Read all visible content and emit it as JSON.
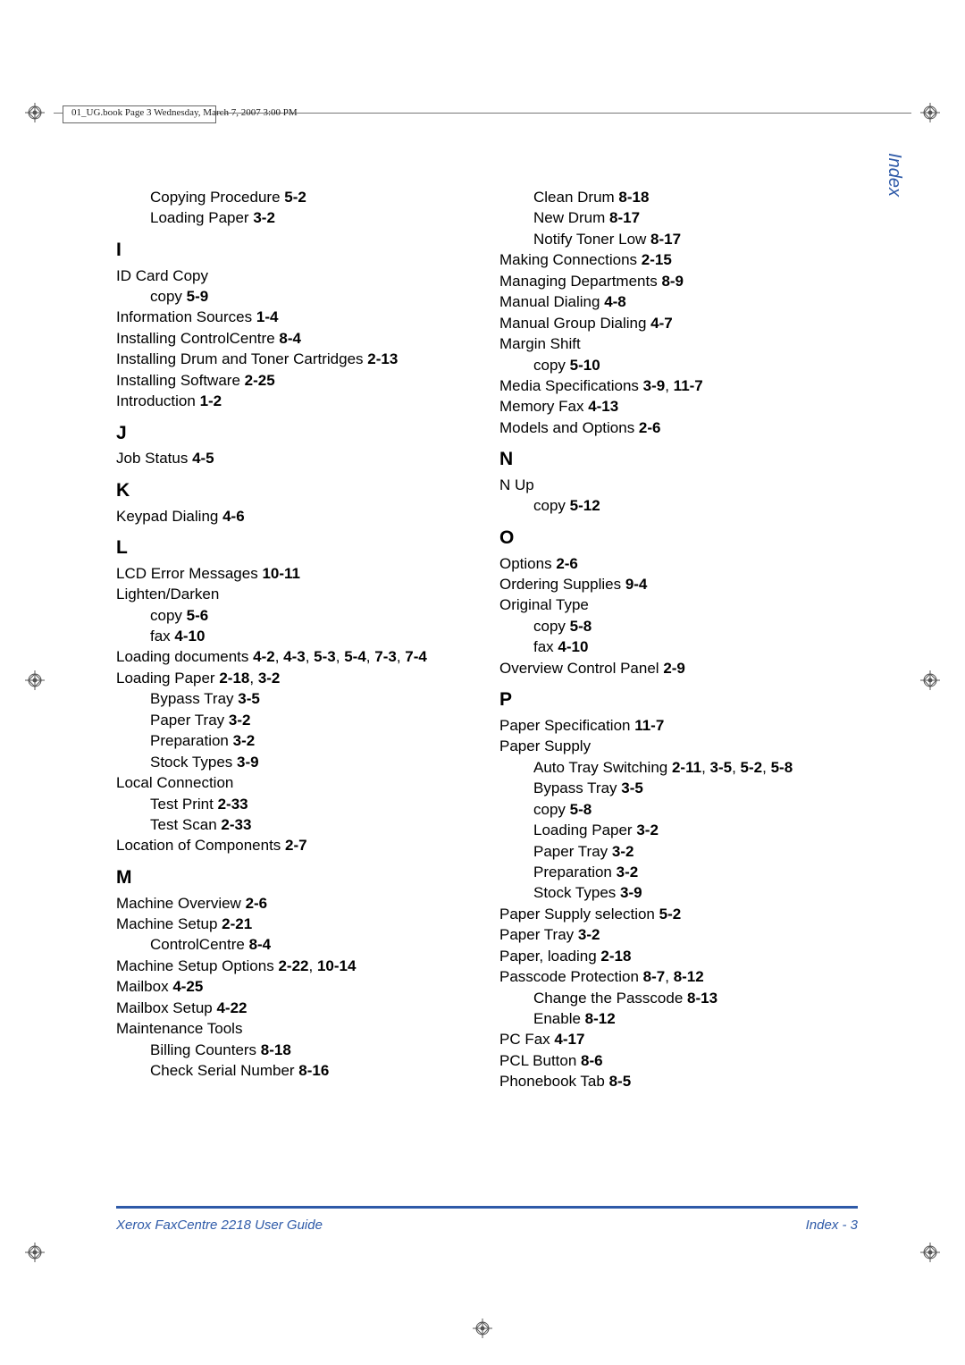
{
  "header_meta": "01_UG.book  Page 3  Wednesday, March 7, 2007  3:00 PM",
  "side_label": "Index",
  "footer": {
    "left": "Xerox FaxCentre 2218 User Guide",
    "right": "Index - 3"
  },
  "colors": {
    "accent": "#2e5aa8",
    "text": "#000000",
    "meta": "#222222",
    "rule_gray": "#777777",
    "background": "#ffffff"
  },
  "typography": {
    "body_family": "Arial, Helvetica, sans-serif",
    "body_size_pt": 12,
    "head_size_pt": 16,
    "meta_family": "Times New Roman, serif",
    "meta_size_pt": 8,
    "side_label_size_pt": 15,
    "footer_size_pt": 11
  },
  "registration_marks": {
    "shape": "circle-with-cross-and-diamond",
    "stroke": "#555555",
    "positions": [
      "top-left",
      "top-right",
      "mid-left",
      "mid-right",
      "bottom-left",
      "bottom-right",
      "bottom-center",
      "top-center-inner"
    ]
  },
  "left_column": [
    {
      "type": "entry",
      "indent": 1,
      "text": "Copying Procedure ",
      "ref": "5-2"
    },
    {
      "type": "entry",
      "indent": 1,
      "text": "Loading Paper ",
      "ref": "3-2"
    },
    {
      "type": "head",
      "text": "I"
    },
    {
      "type": "entry",
      "indent": 0,
      "text": "ID Card Copy"
    },
    {
      "type": "entry",
      "indent": 1,
      "text": "copy ",
      "ref": "5-9"
    },
    {
      "type": "entry",
      "indent": 0,
      "text": "Information Sources ",
      "ref": "1-4"
    },
    {
      "type": "entry",
      "indent": 0,
      "text": "Installing ControlCentre ",
      "ref": "8-4"
    },
    {
      "type": "entry",
      "indent": 0,
      "text": "Installing Drum and Toner Cartridges ",
      "ref": "2-13"
    },
    {
      "type": "entry",
      "indent": 0,
      "text": "Installing Software ",
      "ref": "2-25"
    },
    {
      "type": "entry",
      "indent": 0,
      "text": "Introduction ",
      "ref": "1-2"
    },
    {
      "type": "head",
      "text": "J"
    },
    {
      "type": "entry",
      "indent": 0,
      "text": "Job Status ",
      "ref": "4-5"
    },
    {
      "type": "head",
      "text": "K"
    },
    {
      "type": "entry",
      "indent": 0,
      "text": "Keypad Dialing ",
      "ref": "4-6"
    },
    {
      "type": "head",
      "text": "L"
    },
    {
      "type": "entry",
      "indent": 0,
      "text": "LCD Error Messages ",
      "ref": "10-11"
    },
    {
      "type": "entry",
      "indent": 0,
      "text": "Lighten/Darken"
    },
    {
      "type": "entry",
      "indent": 1,
      "text": "copy ",
      "ref": "5-6"
    },
    {
      "type": "entry",
      "indent": 1,
      "text": "fax ",
      "ref": "4-10"
    },
    {
      "type": "entry",
      "indent": 0,
      "text": "Loading documents ",
      "ref": "4-2, 4-3, 5-3, 5-4, 7-3, 7-4"
    },
    {
      "type": "entry",
      "indent": 0,
      "text": "Loading Paper ",
      "ref": "2-18, 3-2"
    },
    {
      "type": "entry",
      "indent": 1,
      "text": "Bypass Tray ",
      "ref": "3-5"
    },
    {
      "type": "entry",
      "indent": 1,
      "text": "Paper Tray ",
      "ref": "3-2"
    },
    {
      "type": "entry",
      "indent": 1,
      "text": "Preparation ",
      "ref": "3-2"
    },
    {
      "type": "entry",
      "indent": 1,
      "text": "Stock Types ",
      "ref": "3-9"
    },
    {
      "type": "entry",
      "indent": 0,
      "text": "Local Connection"
    },
    {
      "type": "entry",
      "indent": 1,
      "text": "Test Print ",
      "ref": "2-33"
    },
    {
      "type": "entry",
      "indent": 1,
      "text": "Test Scan ",
      "ref": "2-33"
    },
    {
      "type": "entry",
      "indent": 0,
      "text": "Location of Components ",
      "ref": "2-7"
    },
    {
      "type": "head",
      "text": "M"
    },
    {
      "type": "entry",
      "indent": 0,
      "text": "Machine Overview ",
      "ref": "2-6"
    },
    {
      "type": "entry",
      "indent": 0,
      "text": "Machine Setup ",
      "ref": "2-21"
    },
    {
      "type": "entry",
      "indent": 1,
      "text": "ControlCentre ",
      "ref": "8-4"
    },
    {
      "type": "entry",
      "indent": 0,
      "text": "Machine Setup Options ",
      "ref": "2-22, 10-14"
    },
    {
      "type": "entry",
      "indent": 0,
      "text": "Mailbox ",
      "ref": "4-25"
    },
    {
      "type": "entry",
      "indent": 0,
      "text": "Mailbox Setup ",
      "ref": "4-22"
    },
    {
      "type": "entry",
      "indent": 0,
      "text": "Maintenance Tools"
    },
    {
      "type": "entry",
      "indent": 1,
      "text": "Billing Counters ",
      "ref": "8-18"
    },
    {
      "type": "entry",
      "indent": 1,
      "text": "Check Serial Number ",
      "ref": "8-16"
    }
  ],
  "right_column": [
    {
      "type": "entry",
      "indent": 1,
      "text": "Clean Drum ",
      "ref": "8-18"
    },
    {
      "type": "entry",
      "indent": 1,
      "text": "New Drum ",
      "ref": "8-17"
    },
    {
      "type": "entry",
      "indent": 1,
      "text": "Notify Toner Low ",
      "ref": "8-17"
    },
    {
      "type": "entry",
      "indent": 0,
      "text": "Making Connections ",
      "ref": "2-15"
    },
    {
      "type": "entry",
      "indent": 0,
      "text": "Managing Departments ",
      "ref": "8-9"
    },
    {
      "type": "entry",
      "indent": 0,
      "text": "Manual Dialing ",
      "ref": "4-8"
    },
    {
      "type": "entry",
      "indent": 0,
      "text": "Manual Group Dialing ",
      "ref": "4-7"
    },
    {
      "type": "entry",
      "indent": 0,
      "text": "Margin Shift"
    },
    {
      "type": "entry",
      "indent": 1,
      "text": "copy ",
      "ref": "5-10"
    },
    {
      "type": "entry",
      "indent": 0,
      "text": "Media Specifications ",
      "ref": "3-9, 11-7"
    },
    {
      "type": "entry",
      "indent": 0,
      "text": "Memory Fax ",
      "ref": "4-13"
    },
    {
      "type": "entry",
      "indent": 0,
      "text": "Models and Options ",
      "ref": "2-6"
    },
    {
      "type": "head",
      "text": "N"
    },
    {
      "type": "entry",
      "indent": 0,
      "text": "N Up"
    },
    {
      "type": "entry",
      "indent": 1,
      "text": "copy ",
      "ref": "5-12"
    },
    {
      "type": "head",
      "text": "O"
    },
    {
      "type": "entry",
      "indent": 0,
      "text": "Options ",
      "ref": "2-6"
    },
    {
      "type": "entry",
      "indent": 0,
      "text": "Ordering Supplies ",
      "ref": "9-4"
    },
    {
      "type": "entry",
      "indent": 0,
      "text": "Original Type"
    },
    {
      "type": "entry",
      "indent": 1,
      "text": "copy ",
      "ref": "5-8"
    },
    {
      "type": "entry",
      "indent": 1,
      "text": "fax ",
      "ref": "4-10"
    },
    {
      "type": "entry",
      "indent": 0,
      "text": "Overview Control Panel ",
      "ref": "2-9"
    },
    {
      "type": "head",
      "text": "P"
    },
    {
      "type": "entry",
      "indent": 0,
      "text": "Paper Specification ",
      "ref": "11-7"
    },
    {
      "type": "entry",
      "indent": 0,
      "text": "Paper Supply"
    },
    {
      "type": "entry",
      "indent": 1,
      "text": "Auto Tray Switching ",
      "ref": "2-11, 3-5, 5-2, 5-8"
    },
    {
      "type": "entry",
      "indent": 1,
      "text": "Bypass Tray ",
      "ref": "3-5"
    },
    {
      "type": "entry",
      "indent": 1,
      "text": "copy ",
      "ref": "5-8"
    },
    {
      "type": "entry",
      "indent": 1,
      "text": "Loading Paper ",
      "ref": "3-2"
    },
    {
      "type": "entry",
      "indent": 1,
      "text": "Paper Tray ",
      "ref": "3-2"
    },
    {
      "type": "entry",
      "indent": 1,
      "text": "Preparation ",
      "ref": "3-2"
    },
    {
      "type": "entry",
      "indent": 1,
      "text": "Stock Types ",
      "ref": "3-9"
    },
    {
      "type": "entry",
      "indent": 0,
      "text": "Paper Supply selection ",
      "ref": "5-2"
    },
    {
      "type": "entry",
      "indent": 0,
      "text": "Paper Tray ",
      "ref": "3-2"
    },
    {
      "type": "entry",
      "indent": 0,
      "text": "Paper, loading ",
      "ref": "2-18"
    },
    {
      "type": "entry",
      "indent": 0,
      "text": "Passcode Protection ",
      "ref": "8-7, 8-12"
    },
    {
      "type": "entry",
      "indent": 1,
      "text": "Change the Passcode ",
      "ref": "8-13"
    },
    {
      "type": "entry",
      "indent": 1,
      "text": "Enable ",
      "ref": "8-12"
    },
    {
      "type": "entry",
      "indent": 0,
      "text": "PC Fax ",
      "ref": "4-17"
    },
    {
      "type": "entry",
      "indent": 0,
      "text": "PCL Button ",
      "ref": "8-6"
    },
    {
      "type": "entry",
      "indent": 0,
      "text": "Phonebook Tab ",
      "ref": "8-5"
    }
  ]
}
